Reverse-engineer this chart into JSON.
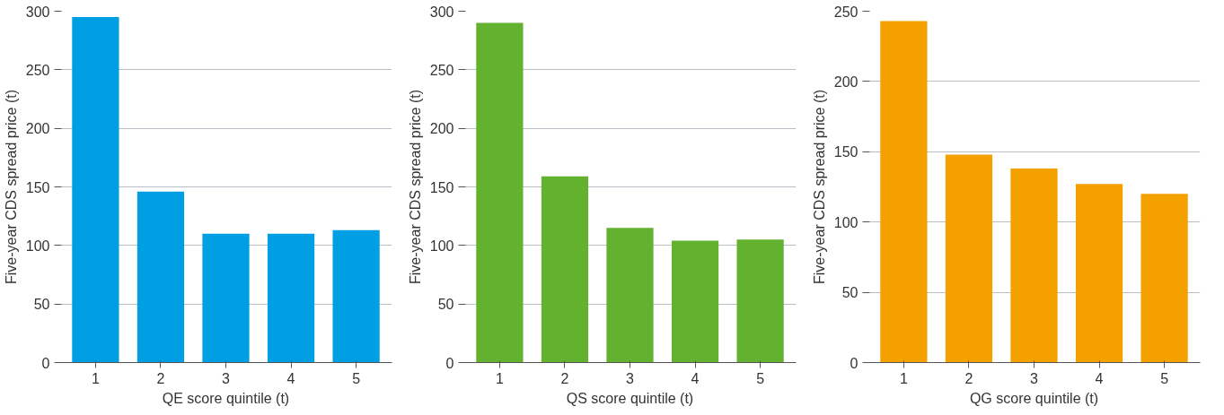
{
  "chart_data": [
    {
      "type": "bar",
      "xlabel": "QE score quintile (t)",
      "ylabel": "Five-year CDS spread price (t)",
      "categories": [
        "1",
        "2",
        "3",
        "4",
        "5"
      ],
      "values": [
        295,
        146,
        110,
        110,
        113
      ],
      "color": "#009fe3",
      "ylim": [
        0,
        300
      ],
      "yticks": [
        0,
        50,
        100,
        150,
        200,
        250,
        300
      ],
      "grid": "y"
    },
    {
      "type": "bar",
      "xlabel": "QS score quintile (t)",
      "ylabel": "Five-year CDS spread price (t)",
      "categories": [
        "1",
        "2",
        "3",
        "4",
        "5"
      ],
      "values": [
        290,
        159,
        115,
        104,
        105
      ],
      "color": "#63b22f",
      "ylim": [
        0,
        300
      ],
      "yticks": [
        0,
        50,
        100,
        150,
        200,
        250,
        300
      ],
      "grid": "y"
    },
    {
      "type": "bar",
      "xlabel": "QG score quintile (t)",
      "ylabel": "Five-year CDS spread price (t)",
      "categories": [
        "1",
        "2",
        "3",
        "4",
        "5"
      ],
      "values": [
        243,
        148,
        138,
        127,
        120
      ],
      "color": "#f4a100",
      "ylim": [
        0,
        250
      ],
      "yticks": [
        0,
        50,
        100,
        150,
        200,
        250
      ],
      "grid": "y"
    }
  ]
}
